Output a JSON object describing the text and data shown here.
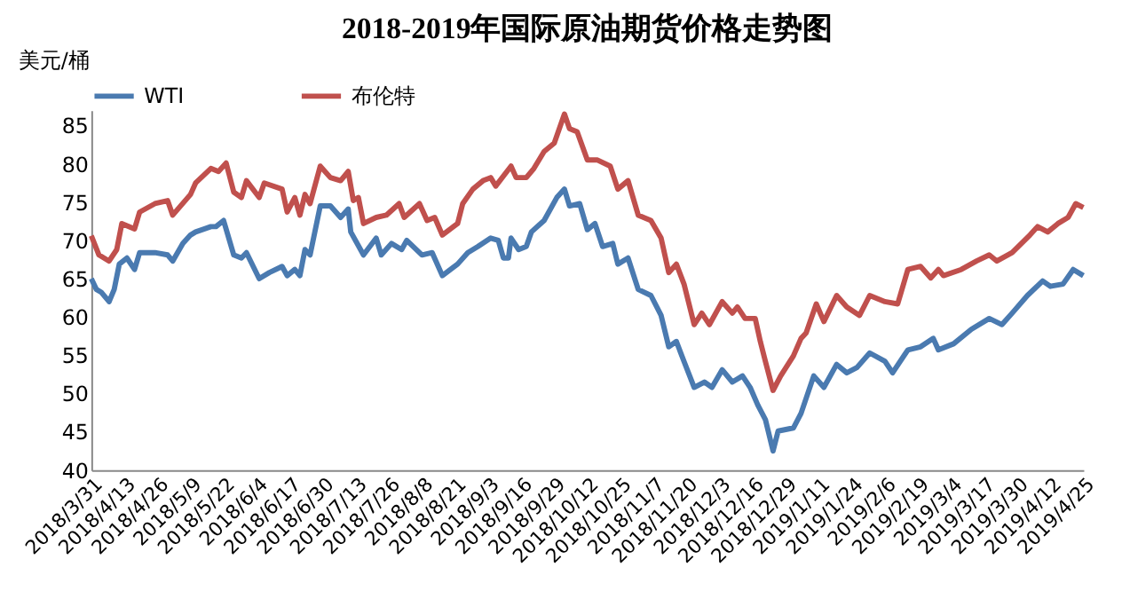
{
  "chart_data": {
    "type": "line",
    "title": "2018-2019年国际原油期货价格走势图",
    "ylabel": "美元/桶",
    "legend": "top",
    "ylim": [
      40,
      87
    ],
    "yticks": [
      40,
      45,
      50,
      55,
      60,
      65,
      70,
      75,
      80,
      85
    ],
    "xlim": [
      "2018-03-31",
      "2019-04-25"
    ],
    "xticks": [
      {
        "value": "2018-03-31",
        "label": "2018/3/31"
      },
      {
        "value": "2018-04-13",
        "label": "2018/4/13"
      },
      {
        "value": "2018-04-26",
        "label": "2018/4/26"
      },
      {
        "value": "2018-05-09",
        "label": "2018/5/9"
      },
      {
        "value": "2018-05-22",
        "label": "2018/5/22"
      },
      {
        "value": "2018-06-04",
        "label": "2018/6/4"
      },
      {
        "value": "2018-06-17",
        "label": "2018/6/17"
      },
      {
        "value": "2018-06-30",
        "label": "2018/6/30"
      },
      {
        "value": "2018-07-13",
        "label": "2018/7/13"
      },
      {
        "value": "2018-07-26",
        "label": "2018/7/26"
      },
      {
        "value": "2018-08-08",
        "label": "2018/8/8"
      },
      {
        "value": "2018-08-21",
        "label": "2018/8/21"
      },
      {
        "value": "2018-09-03",
        "label": "2018/9/3"
      },
      {
        "value": "2018-09-16",
        "label": "2018/9/16"
      },
      {
        "value": "2018-09-29",
        "label": "2018/9/29"
      },
      {
        "value": "2018-10-12",
        "label": "2018/10/12"
      },
      {
        "value": "2018-10-25",
        "label": "2018/10/25"
      },
      {
        "value": "2018-11-07",
        "label": "2018/11/7"
      },
      {
        "value": "2018-11-20",
        "label": "2018/11/20"
      },
      {
        "value": "2018-12-03",
        "label": "2018/12/3"
      },
      {
        "value": "2018-12-16",
        "label": "2018/12/16"
      },
      {
        "value": "2018-12-29",
        "label": "2018/12/29"
      },
      {
        "value": "2019-01-11",
        "label": "2019/1/11"
      },
      {
        "value": "2019-01-24",
        "label": "2019/1/24"
      },
      {
        "value": "2019-02-06",
        "label": "2019/2/6"
      },
      {
        "value": "2019-02-19",
        "label": "2019/2/19"
      },
      {
        "value": "2019-03-04",
        "label": "2019/3/4"
      },
      {
        "value": "2019-03-17",
        "label": "2019/3/17"
      },
      {
        "value": "2019-03-30",
        "label": "2019/3/30"
      },
      {
        "value": "2019-04-12",
        "label": "2019/4/12"
      },
      {
        "value": "2019-04-25",
        "label": "2019/4/25"
      }
    ],
    "series": [
      {
        "name": "WTI",
        "color": "#4a7ab0",
        "x": [
          "2018-03-31",
          "2018-04-02",
          "2018-04-04",
          "2018-04-07",
          "2018-04-09",
          "2018-04-11",
          "2018-04-14",
          "2018-04-17",
          "2018-04-19",
          "2018-04-25",
          "2018-04-30",
          "2018-05-02",
          "2018-05-06",
          "2018-05-09",
          "2018-05-11",
          "2018-05-17",
          "2018-05-19",
          "2018-05-22",
          "2018-05-26",
          "2018-05-29",
          "2018-05-31",
          "2018-06-05",
          "2018-06-09",
          "2018-06-14",
          "2018-06-16",
          "2018-06-19",
          "2018-06-21",
          "2018-06-23",
          "2018-06-25",
          "2018-06-29",
          "2018-07-03",
          "2018-07-07",
          "2018-07-10",
          "2018-07-11",
          "2018-07-16",
          "2018-07-21",
          "2018-07-23",
          "2018-07-27",
          "2018-07-31",
          "2018-08-02",
          "2018-08-08",
          "2018-08-12",
          "2018-08-16",
          "2018-08-22",
          "2018-08-26",
          "2018-08-30",
          "2018-09-04",
          "2018-09-07",
          "2018-09-09",
          "2018-09-11",
          "2018-09-12",
          "2018-09-15",
          "2018-09-18",
          "2018-09-20",
          "2018-09-25",
          "2018-09-30",
          "2018-10-03",
          "2018-10-05",
          "2018-10-09",
          "2018-10-12",
          "2018-10-15",
          "2018-10-18",
          "2018-10-22",
          "2018-10-24",
          "2018-10-28",
          "2018-11-01",
          "2018-11-06",
          "2018-11-10",
          "2018-11-13",
          "2018-11-16",
          "2018-11-19",
          "2018-11-23",
          "2018-11-27",
          "2018-11-30",
          "2018-12-04",
          "2018-12-08",
          "2018-12-12",
          "2018-12-15",
          "2018-12-18",
          "2018-12-21",
          "2018-12-24",
          "2018-12-26",
          "2019-01-01",
          "2019-01-04",
          "2019-01-09",
          "2019-01-13",
          "2019-01-18",
          "2019-01-22",
          "2019-01-26",
          "2019-01-31",
          "2019-02-06",
          "2019-02-09",
          "2019-02-15",
          "2019-02-20",
          "2019-02-25",
          "2019-02-27",
          "2019-03-05",
          "2019-03-12",
          "2019-03-19",
          "2019-03-24",
          "2019-03-28",
          "2019-04-03",
          "2019-04-09",
          "2019-04-12",
          "2019-04-17",
          "2019-04-21",
          "2019-04-25"
        ],
        "values": [
          65.0,
          63.6,
          63.2,
          62.0,
          63.6,
          66.9,
          67.7,
          66.2,
          68.4,
          68.4,
          68.1,
          67.3,
          69.6,
          70.7,
          71.1,
          71.8,
          71.8,
          72.6,
          68.1,
          67.7,
          68.4,
          65.0,
          65.8,
          66.6,
          65.4,
          66.2,
          65.4,
          68.8,
          68.1,
          74.5,
          74.5,
          73.0,
          74.1,
          71.1,
          68.1,
          70.3,
          68.1,
          69.6,
          68.8,
          70.0,
          68.1,
          68.4,
          65.4,
          66.9,
          68.4,
          69.2,
          70.3,
          70.0,
          67.7,
          67.7,
          70.3,
          68.8,
          69.2,
          71.1,
          72.6,
          75.6,
          76.7,
          74.5,
          74.8,
          71.4,
          72.2,
          69.2,
          69.6,
          66.9,
          67.7,
          63.6,
          62.8,
          60.2,
          56.1,
          56.8,
          54.2,
          50.8,
          51.5,
          50.8,
          53.1,
          51.5,
          52.3,
          50.8,
          48.5,
          46.6,
          42.5,
          45.1,
          45.5,
          47.4,
          52.3,
          50.8,
          53.8,
          52.7,
          53.4,
          55.3,
          54.2,
          52.7,
          55.7,
          56.1,
          57.2,
          55.7,
          56.5,
          58.4,
          59.8,
          59.0,
          60.5,
          62.8,
          64.7,
          64.0,
          64.3,
          66.2,
          65.4
        ]
      },
      {
        "name": "布伦特",
        "color": "#c0504d",
        "x": [
          "2018-03-31",
          "2018-04-03",
          "2018-04-07",
          "2018-04-10",
          "2018-04-12",
          "2018-04-17",
          "2018-04-19",
          "2018-04-25",
          "2018-04-30",
          "2018-05-02",
          "2018-05-09",
          "2018-05-11",
          "2018-05-17",
          "2018-05-20",
          "2018-05-23",
          "2018-05-26",
          "2018-05-29",
          "2018-05-31",
          "2018-06-05",
          "2018-06-07",
          "2018-06-14",
          "2018-06-16",
          "2018-06-19",
          "2018-06-21",
          "2018-06-23",
          "2018-06-25",
          "2018-06-29",
          "2018-07-03",
          "2018-07-07",
          "2018-07-10",
          "2018-07-12",
          "2018-07-14",
          "2018-07-16",
          "2018-07-21",
          "2018-07-25",
          "2018-07-30",
          "2018-08-01",
          "2018-08-07",
          "2018-08-10",
          "2018-08-13",
          "2018-08-16",
          "2018-08-22",
          "2018-08-24",
          "2018-08-28",
          "2018-09-01",
          "2018-09-04",
          "2018-09-06",
          "2018-09-12",
          "2018-09-14",
          "2018-09-18",
          "2018-09-21",
          "2018-09-25",
          "2018-09-29",
          "2018-10-03",
          "2018-10-05",
          "2018-10-08",
          "2018-10-12",
          "2018-10-16",
          "2018-10-21",
          "2018-10-24",
          "2018-10-28",
          "2018-11-01",
          "2018-11-06",
          "2018-11-10",
          "2018-11-13",
          "2018-11-16",
          "2018-11-19",
          "2018-11-23",
          "2018-11-26",
          "2018-11-29",
          "2018-12-04",
          "2018-12-08",
          "2018-12-10",
          "2018-12-13",
          "2018-12-17",
          "2018-12-19",
          "2018-12-21",
          "2018-12-24",
          "2018-12-27",
          "2019-01-01",
          "2019-01-04",
          "2019-01-06",
          "2019-01-10",
          "2019-01-13",
          "2019-01-18",
          "2019-01-22",
          "2019-01-27",
          "2019-01-31",
          "2019-02-06",
          "2019-02-11",
          "2019-02-15",
          "2019-02-20",
          "2019-02-24",
          "2019-02-27",
          "2019-03-01",
          "2019-03-08",
          "2019-03-14",
          "2019-03-19",
          "2019-03-22",
          "2019-03-28",
          "2019-04-04",
          "2019-04-07",
          "2019-04-11",
          "2019-04-15",
          "2019-04-19",
          "2019-04-22",
          "2019-04-25"
        ],
        "values": [
          70.6,
          68.1,
          67.3,
          68.8,
          72.2,
          71.5,
          73.7,
          74.8,
          75.2,
          73.3,
          76.0,
          77.5,
          79.4,
          79.0,
          80.1,
          76.3,
          75.6,
          77.8,
          75.6,
          77.5,
          76.7,
          73.7,
          75.6,
          73.3,
          76.0,
          74.8,
          79.7,
          78.2,
          77.8,
          79.0,
          75.2,
          75.6,
          72.2,
          73.0,
          73.3,
          74.8,
          73.0,
          74.8,
          72.6,
          73.0,
          70.7,
          72.2,
          74.8,
          76.7,
          77.8,
          78.2,
          77.1,
          79.7,
          78.2,
          78.2,
          79.4,
          81.6,
          82.7,
          86.5,
          84.6,
          84.2,
          80.5,
          80.5,
          79.7,
          76.7,
          77.8,
          73.3,
          72.6,
          70.3,
          65.8,
          66.9,
          64.3,
          59.0,
          60.5,
          59.0,
          62.0,
          60.5,
          61.3,
          59.8,
          59.8,
          56.8,
          54.2,
          50.4,
          52.3,
          54.9,
          57.2,
          57.9,
          61.7,
          59.4,
          62.8,
          61.3,
          60.2,
          62.8,
          62.0,
          61.7,
          66.2,
          66.6,
          65.1,
          66.2,
          65.4,
          66.2,
          67.3,
          68.1,
          67.3,
          68.4,
          70.7,
          71.8,
          71.1,
          72.2,
          73.0,
          74.8,
          74.3
        ]
      }
    ]
  }
}
